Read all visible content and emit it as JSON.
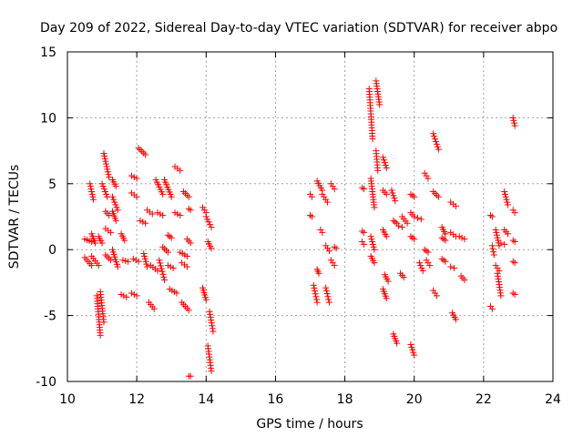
{
  "chart_data": {
    "type": "scatter",
    "title": "Day 209 of 2022, Sidereal Day-to-day VTEC variation (SDTVAR) for receiver abpo",
    "xlabel": "GPS time / hours",
    "ylabel": "SDTVAR / TECUs",
    "xlim": [
      10,
      24
    ],
    "ylim": [
      -10,
      15
    ],
    "xticks": [
      "10",
      "12",
      "14",
      "16",
      "18",
      "20",
      "22",
      "24"
    ],
    "yticks": [
      "-10",
      "-5",
      "0",
      "5",
      "10",
      "15"
    ],
    "grid": true,
    "marker": "+",
    "color": "#ff0000",
    "segments": [
      {
        "x0": 10.5,
        "y0": 0.8,
        "x1": 10.7,
        "y1": 0.6
      },
      {
        "x0": 10.5,
        "y0": -0.6,
        "x1": 10.7,
        "y1": -1.2
      },
      {
        "x0": 10.65,
        "y0": 5.0,
        "x1": 10.75,
        "y1": 3.8
      },
      {
        "x0": 10.7,
        "y0": 1.2,
        "x1": 10.8,
        "y1": 0.5
      },
      {
        "x0": 10.7,
        "y0": -0.5,
        "x1": 10.9,
        "y1": -1.2
      },
      {
        "x0": 10.85,
        "y0": -3.5,
        "x1": 10.95,
        "y1": -6.5
      },
      {
        "x0": 10.95,
        "y0": -3.2,
        "x1": 11.05,
        "y1": -5.5
      },
      {
        "x0": 10.9,
        "y0": 1.0,
        "x1": 11.0,
        "y1": 0.5
      },
      {
        "x0": 11.05,
        "y0": 7.3,
        "x1": 11.2,
        "y1": 5.5
      },
      {
        "x0": 11.0,
        "y0": 5.0,
        "x1": 11.15,
        "y1": 4.0
      },
      {
        "x0": 11.1,
        "y0": 2.9,
        "x1": 11.2,
        "y1": 2.6
      },
      {
        "x0": 11.1,
        "y0": 1.6,
        "x1": 11.25,
        "y1": 1.3
      },
      {
        "x0": 11.1,
        "y0": -0.4,
        "x1": 11.25,
        "y1": -0.8
      },
      {
        "x0": 11.3,
        "y0": 5.3,
        "x1": 11.4,
        "y1": 4.8
      },
      {
        "x0": 11.3,
        "y0": 4.0,
        "x1": 11.45,
        "y1": 3.0
      },
      {
        "x0": 11.3,
        "y0": 2.9,
        "x1": 11.4,
        "y1": 2.2
      },
      {
        "x0": 11.3,
        "y0": 0.0,
        "x1": 11.45,
        "y1": -1.3
      },
      {
        "x0": 11.55,
        "y0": 1.2,
        "x1": 11.65,
        "y1": 0.7
      },
      {
        "x0": 11.55,
        "y0": -3.4,
        "x1": 11.7,
        "y1": -3.6
      },
      {
        "x0": 11.6,
        "y0": -0.8,
        "x1": 11.75,
        "y1": -0.9
      },
      {
        "x0": 11.85,
        "y0": 5.6,
        "x1": 12.0,
        "y1": 5.4
      },
      {
        "x0": 11.85,
        "y0": 4.3,
        "x1": 12.0,
        "y1": 4.0
      },
      {
        "x0": 11.85,
        "y0": -3.3,
        "x1": 12.0,
        "y1": -3.5
      },
      {
        "x0": 11.9,
        "y0": -0.7,
        "x1": 12.05,
        "y1": -0.9
      },
      {
        "x0": 12.05,
        "y0": 7.7,
        "x1": 12.25,
        "y1": 7.2
      },
      {
        "x0": 12.1,
        "y0": 2.2,
        "x1": 12.25,
        "y1": 2.0
      },
      {
        "x0": 12.2,
        "y0": -0.3,
        "x1": 12.3,
        "y1": -1.3
      },
      {
        "x0": 12.3,
        "y0": 3.0,
        "x1": 12.45,
        "y1": 2.7
      },
      {
        "x0": 12.35,
        "y0": -4.0,
        "x1": 12.5,
        "y1": -4.5
      },
      {
        "x0": 12.4,
        "y0": -1.2,
        "x1": 12.6,
        "y1": -1.6
      },
      {
        "x0": 12.55,
        "y0": 5.3,
        "x1": 12.75,
        "y1": 4.2
      },
      {
        "x0": 12.6,
        "y0": 2.8,
        "x1": 12.75,
        "y1": 2.6
      },
      {
        "x0": 12.65,
        "y0": -0.8,
        "x1": 12.8,
        "y1": -2.3
      },
      {
        "x0": 12.75,
        "y0": 0.2,
        "x1": 12.9,
        "y1": -0.2
      },
      {
        "x0": 12.8,
        "y0": 5.3,
        "x1": 13.0,
        "y1": 4.0
      },
      {
        "x0": 12.9,
        "y0": 1.1,
        "x1": 13.0,
        "y1": 0.9
      },
      {
        "x0": 12.9,
        "y0": -1.2,
        "x1": 13.05,
        "y1": -1.4
      },
      {
        "x0": 12.95,
        "y0": -3.0,
        "x1": 13.15,
        "y1": -3.3
      },
      {
        "x0": 13.1,
        "y0": 2.8,
        "x1": 13.25,
        "y1": 2.6
      },
      {
        "x0": 13.1,
        "y0": 6.3,
        "x1": 13.25,
        "y1": 6.0
      },
      {
        "x0": 13.25,
        "y0": -0.2,
        "x1": 13.45,
        "y1": -0.5
      },
      {
        "x0": 13.3,
        "y0": -1.0,
        "x1": 13.45,
        "y1": -1.3
      },
      {
        "x0": 13.3,
        "y0": -4.0,
        "x1": 13.5,
        "y1": -4.6
      },
      {
        "x0": 13.35,
        "y0": 4.4,
        "x1": 13.5,
        "y1": 4.0
      },
      {
        "x0": 13.45,
        "y0": 0.8,
        "x1": 13.55,
        "y1": 0.5
      },
      {
        "x0": 13.5,
        "y0": 3.1,
        "x1": 13.55,
        "y1": 3.0
      },
      {
        "x0": 13.5,
        "y0": -9.6,
        "x1": 13.55,
        "y1": -9.6
      },
      {
        "x0": 13.9,
        "y0": 3.2,
        "x1": 14.0,
        "y1": 2.8
      },
      {
        "x0": 13.9,
        "y0": -2.9,
        "x1": 14.0,
        "y1": -3.8
      },
      {
        "x0": 14.0,
        "y0": 2.5,
        "x1": 14.15,
        "y1": 1.7
      },
      {
        "x0": 14.05,
        "y0": 0.6,
        "x1": 14.15,
        "y1": 0.1
      },
      {
        "x0": 14.1,
        "y0": -4.7,
        "x1": 14.2,
        "y1": -6.2
      },
      {
        "x0": 14.05,
        "y0": -7.3,
        "x1": 14.15,
        "y1": -9.2
      },
      {
        "x0": 17.0,
        "y0": 4.2,
        "x1": 17.05,
        "y1": 4.0
      },
      {
        "x0": 17.0,
        "y0": 2.6,
        "x1": 17.05,
        "y1": 2.5
      },
      {
        "x0": 17.1,
        "y0": -2.7,
        "x1": 17.2,
        "y1": -4.0
      },
      {
        "x0": 17.2,
        "y0": -1.5,
        "x1": 17.25,
        "y1": -1.8
      },
      {
        "x0": 17.2,
        "y0": 5.2,
        "x1": 17.35,
        "y1": 4.5
      },
      {
        "x0": 17.3,
        "y0": 1.5,
        "x1": 17.35,
        "y1": 1.3
      },
      {
        "x0": 17.35,
        "y0": 4.2,
        "x1": 17.5,
        "y1": 3.6
      },
      {
        "x0": 17.45,
        "y0": 0.3,
        "x1": 17.55,
        "y1": -0.1
      },
      {
        "x0": 17.45,
        "y0": -2.9,
        "x1": 17.55,
        "y1": -4.0
      },
      {
        "x0": 17.6,
        "y0": -0.8,
        "x1": 17.7,
        "y1": -1.2
      },
      {
        "x0": 17.6,
        "y0": 5.0,
        "x1": 17.7,
        "y1": 4.6
      },
      {
        "x0": 17.7,
        "y0": 0.2,
        "x1": 17.75,
        "y1": 0.1
      },
      {
        "x0": 18.5,
        "y0": 4.7,
        "x1": 18.55,
        "y1": 4.6
      },
      {
        "x0": 18.5,
        "y0": 1.4,
        "x1": 18.55,
        "y1": 1.3
      },
      {
        "x0": 18.5,
        "y0": 0.6,
        "x1": 18.55,
        "y1": 0.4
      },
      {
        "x0": 18.7,
        "y0": 12.2,
        "x1": 18.8,
        "y1": 8.4
      },
      {
        "x0": 18.75,
        "y0": 5.4,
        "x1": 18.85,
        "y1": 3.2
      },
      {
        "x0": 18.75,
        "y0": 1.0,
        "x1": 18.85,
        "y1": 0.0
      },
      {
        "x0": 18.75,
        "y0": -0.5,
        "x1": 18.85,
        "y1": -1.0
      },
      {
        "x0": 18.9,
        "y0": 12.8,
        "x1": 19.0,
        "y1": 11.0
      },
      {
        "x0": 18.9,
        "y0": 7.5,
        "x1": 18.95,
        "y1": 6.0
      },
      {
        "x0": 19.1,
        "y0": 7.0,
        "x1": 19.2,
        "y1": 6.2
      },
      {
        "x0": 19.1,
        "y0": 4.5,
        "x1": 19.2,
        "y1": 4.2
      },
      {
        "x0": 19.1,
        "y0": 1.5,
        "x1": 19.2,
        "y1": 1.0
      },
      {
        "x0": 19.1,
        "y0": -3.0,
        "x1": 19.2,
        "y1": -3.7
      },
      {
        "x0": 19.15,
        "y0": -1.9,
        "x1": 19.25,
        "y1": -2.4
      },
      {
        "x0": 19.35,
        "y0": 4.5,
        "x1": 19.45,
        "y1": 3.7
      },
      {
        "x0": 19.4,
        "y0": 2.2,
        "x1": 19.5,
        "y1": 2.0
      },
      {
        "x0": 19.4,
        "y0": -6.4,
        "x1": 19.5,
        "y1": -7.1
      },
      {
        "x0": 19.55,
        "y0": 1.8,
        "x1": 19.65,
        "y1": 1.7
      },
      {
        "x0": 19.6,
        "y0": -1.8,
        "x1": 19.7,
        "y1": -2.1
      },
      {
        "x0": 19.65,
        "y0": 2.5,
        "x1": 19.8,
        "y1": 2.0
      },
      {
        "x0": 19.9,
        "y0": 4.2,
        "x1": 20.0,
        "y1": 4.0
      },
      {
        "x0": 19.9,
        "y0": 2.8,
        "x1": 20.0,
        "y1": 2.5
      },
      {
        "x0": 19.9,
        "y0": 1.0,
        "x1": 20.0,
        "y1": 0.8
      },
      {
        "x0": 19.9,
        "y0": -7.2,
        "x1": 20.0,
        "y1": -8.0
      },
      {
        "x0": 20.1,
        "y0": 2.4,
        "x1": 20.2,
        "y1": 2.3
      },
      {
        "x0": 20.15,
        "y0": -1.0,
        "x1": 20.25,
        "y1": -1.6
      },
      {
        "x0": 20.3,
        "y0": 5.8,
        "x1": 20.4,
        "y1": 5.4
      },
      {
        "x0": 20.3,
        "y0": 0.0,
        "x1": 20.4,
        "y1": -0.2
      },
      {
        "x0": 20.35,
        "y0": -0.8,
        "x1": 20.45,
        "y1": -1.2
      },
      {
        "x0": 20.55,
        "y0": 8.8,
        "x1": 20.7,
        "y1": 7.6
      },
      {
        "x0": 20.55,
        "y0": 4.4,
        "x1": 20.7,
        "y1": 4.0
      },
      {
        "x0": 20.55,
        "y0": -3.1,
        "x1": 20.65,
        "y1": -3.5
      },
      {
        "x0": 20.8,
        "y0": 1.7,
        "x1": 20.9,
        "y1": 1.2
      },
      {
        "x0": 20.8,
        "y0": 0.9,
        "x1": 20.9,
        "y1": 0.7
      },
      {
        "x0": 20.8,
        "y0": -0.7,
        "x1": 20.9,
        "y1": -0.9
      },
      {
        "x0": 21.05,
        "y0": 3.6,
        "x1": 21.2,
        "y1": 3.3
      },
      {
        "x0": 21.05,
        "y0": 1.3,
        "x1": 21.2,
        "y1": 1.0
      },
      {
        "x0": 21.05,
        "y0": -1.3,
        "x1": 21.15,
        "y1": -1.4
      },
      {
        "x0": 21.1,
        "y0": -4.8,
        "x1": 21.2,
        "y1": -5.3
      },
      {
        "x0": 21.3,
        "y0": 1.0,
        "x1": 21.45,
        "y1": 0.8
      },
      {
        "x0": 21.35,
        "y0": -2.0,
        "x1": 21.45,
        "y1": -2.3
      },
      {
        "x0": 22.2,
        "y0": 2.6,
        "x1": 22.25,
        "y1": 2.5
      },
      {
        "x0": 22.2,
        "y0": -4.3,
        "x1": 22.25,
        "y1": -4.5
      },
      {
        "x0": 22.25,
        "y0": 0.3,
        "x1": 22.3,
        "y1": -0.4
      },
      {
        "x0": 22.35,
        "y0": 1.5,
        "x1": 22.45,
        "y1": 0.3
      },
      {
        "x0": 22.35,
        "y0": -1.2,
        "x1": 22.45,
        "y1": -1.6
      },
      {
        "x0": 22.4,
        "y0": -1.8,
        "x1": 22.5,
        "y1": -3.5
      },
      {
        "x0": 22.5,
        "y0": 0.5,
        "x1": 22.6,
        "y1": 0.4
      },
      {
        "x0": 22.6,
        "y0": 4.4,
        "x1": 22.7,
        "y1": 3.4
      },
      {
        "x0": 22.6,
        "y0": 1.5,
        "x1": 22.7,
        "y1": 1.2
      },
      {
        "x0": 22.85,
        "y0": 10.0,
        "x1": 22.9,
        "y1": 9.4
      },
      {
        "x0": 22.85,
        "y0": 3.0,
        "x1": 22.9,
        "y1": 2.8
      },
      {
        "x0": 22.85,
        "y0": 0.7,
        "x1": 22.9,
        "y1": 0.6
      },
      {
        "x0": 22.85,
        "y0": -0.9,
        "x1": 22.9,
        "y1": -1.0
      },
      {
        "x0": 22.85,
        "y0": -3.3,
        "x1": 22.9,
        "y1": -3.4
      }
    ]
  }
}
